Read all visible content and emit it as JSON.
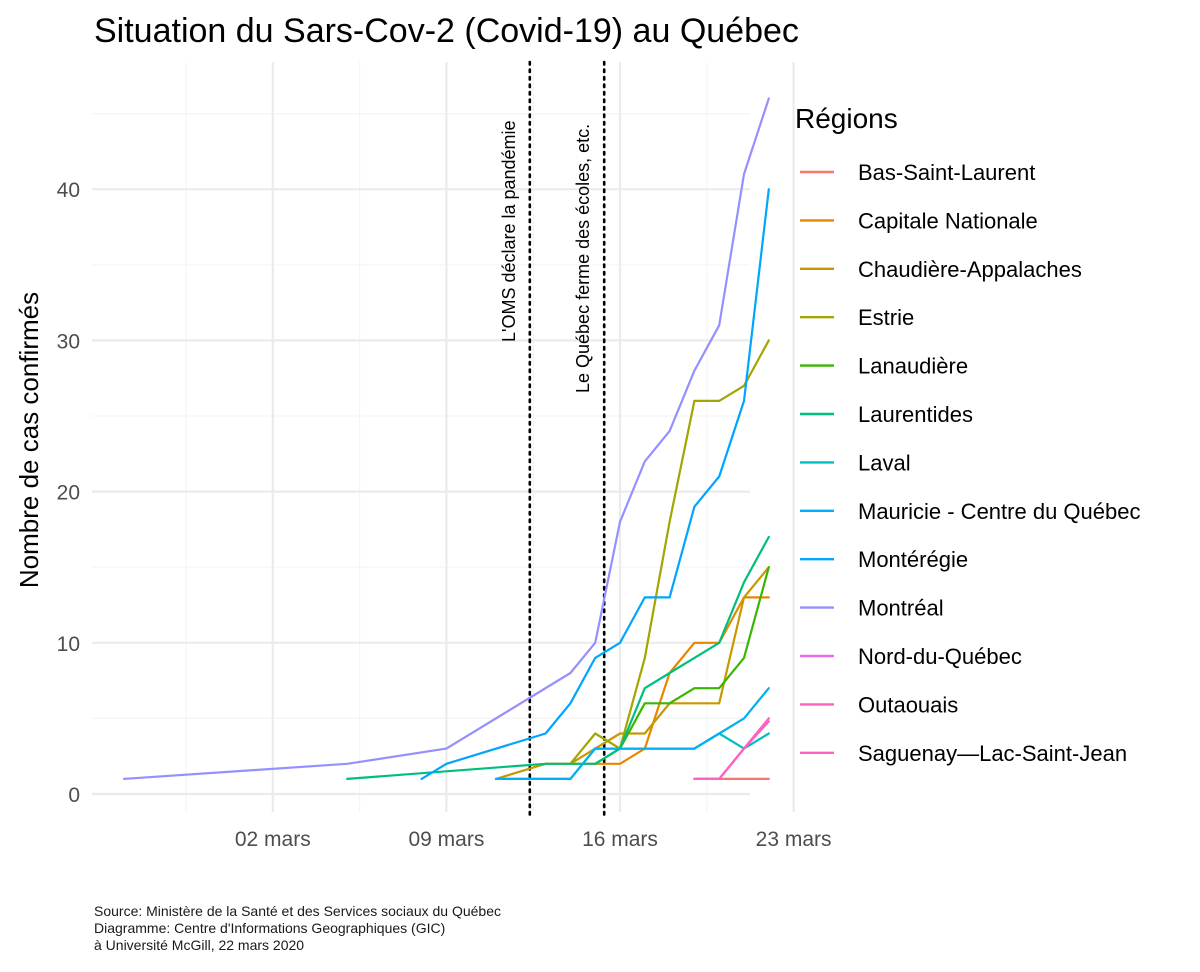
{
  "chart_data": {
    "type": "line",
    "title": "Situation du Sars-Cov-2 (Covid-19) au Québec",
    "ylabel": "Nombre de cas confirmés",
    "xlabel": "",
    "x_ticks": [
      "02 mars",
      "09 mars",
      "16 mars",
      "23 mars"
    ],
    "y_ticks": [
      0,
      10,
      20,
      30,
      40
    ],
    "xlim": [
      "2020-02-25",
      "2020-03-23"
    ],
    "ylim": [
      0,
      48
    ],
    "grid": true,
    "legend_title": "Régions",
    "legend_position": "right",
    "annotations": [
      {
        "date": "2020-03-12",
        "text": "L'OMS déclare la pandémie"
      },
      {
        "date": "2020-03-15",
        "text": "Le Québec ferme des écoles, etc."
      }
    ],
    "series": [
      {
        "name": "Bas-Saint-Laurent",
        "color": "#F8766D",
        "points": [
          [
            "2020-03-19",
            1
          ],
          [
            "2020-03-20",
            1
          ],
          [
            "2020-03-21",
            1
          ],
          [
            "2020-03-22",
            1
          ]
        ]
      },
      {
        "name": "Capitale Nationale",
        "color": "#E58700",
        "points": [
          [
            "2020-03-13",
            2
          ],
          [
            "2020-03-14",
            2
          ],
          [
            "2020-03-15",
            2
          ],
          [
            "2020-03-16",
            2
          ],
          [
            "2020-03-17",
            3
          ],
          [
            "2020-03-18",
            8
          ],
          [
            "2020-03-19",
            10
          ],
          [
            "2020-03-20",
            10
          ],
          [
            "2020-03-21",
            13
          ],
          [
            "2020-03-22",
            13
          ]
        ]
      },
      {
        "name": "Chaudière-Appalaches",
        "color": "#C99800",
        "points": [
          [
            "2020-03-11",
            1
          ],
          [
            "2020-03-12",
            1.5
          ],
          [
            "2020-03-13",
            2
          ],
          [
            "2020-03-14",
            2
          ],
          [
            "2020-03-15",
            3
          ],
          [
            "2020-03-16",
            4
          ],
          [
            "2020-03-17",
            4
          ],
          [
            "2020-03-18",
            6
          ],
          [
            "2020-03-19",
            6
          ],
          [
            "2020-03-20",
            6
          ],
          [
            "2020-03-21",
            13
          ],
          [
            "2020-03-22",
            15
          ]
        ]
      },
      {
        "name": "Estrie",
        "color": "#A3A500",
        "points": [
          [
            "2020-03-14",
            2
          ],
          [
            "2020-03-15",
            4
          ],
          [
            "2020-03-16",
            3
          ],
          [
            "2020-03-17",
            9
          ],
          [
            "2020-03-18",
            18
          ],
          [
            "2020-03-19",
            26
          ],
          [
            "2020-03-20",
            26
          ],
          [
            "2020-03-21",
            27
          ],
          [
            "2020-03-22",
            30
          ]
        ]
      },
      {
        "name": "Lanaudière",
        "color": "#39B600",
        "points": [
          [
            "2020-03-15",
            2
          ],
          [
            "2020-03-16",
            3
          ],
          [
            "2020-03-17",
            6
          ],
          [
            "2020-03-18",
            6
          ],
          [
            "2020-03-19",
            7
          ],
          [
            "2020-03-20",
            7
          ],
          [
            "2020-03-21",
            9
          ],
          [
            "2020-03-22",
            15
          ]
        ]
      },
      {
        "name": "Laurentides",
        "color": "#00BF7D",
        "points": [
          [
            "2020-03-05",
            1
          ],
          [
            "2020-03-09",
            1.5
          ],
          [
            "2020-03-13",
            2
          ],
          [
            "2020-03-14",
            2
          ],
          [
            "2020-03-15",
            2
          ],
          [
            "2020-03-16",
            3
          ],
          [
            "2020-03-17",
            7
          ],
          [
            "2020-03-18",
            8
          ],
          [
            "2020-03-19",
            9
          ],
          [
            "2020-03-20",
            10
          ],
          [
            "2020-03-21",
            14
          ],
          [
            "2020-03-22",
            17
          ]
        ]
      },
      {
        "name": "Laval",
        "color": "#00BFC4",
        "points": [
          [
            "2020-03-11",
            1
          ],
          [
            "2020-03-12",
            1
          ],
          [
            "2020-03-13",
            1
          ],
          [
            "2020-03-14",
            1
          ],
          [
            "2020-03-15",
            3
          ],
          [
            "2020-03-16",
            3
          ],
          [
            "2020-03-17",
            3
          ],
          [
            "2020-03-18",
            3
          ],
          [
            "2020-03-19",
            3
          ],
          [
            "2020-03-20",
            4
          ],
          [
            "2020-03-21",
            3
          ],
          [
            "2020-03-22",
            4
          ]
        ]
      },
      {
        "name": "Mauricie - Centre du Québec",
        "color": "#00B0F6",
        "points": [
          [
            "2020-03-11",
            1
          ],
          [
            "2020-03-12",
            1
          ],
          [
            "2020-03-13",
            1
          ],
          [
            "2020-03-14",
            1
          ],
          [
            "2020-03-15",
            3
          ],
          [
            "2020-03-16",
            3
          ],
          [
            "2020-03-17",
            3
          ],
          [
            "2020-03-18",
            3
          ],
          [
            "2020-03-19",
            3
          ],
          [
            "2020-03-20",
            4
          ],
          [
            "2020-03-21",
            5
          ],
          [
            "2020-03-22",
            7
          ]
        ]
      },
      {
        "name": "Montérégie",
        "color": "#00A5FF",
        "points": [
          [
            "2020-03-08",
            1
          ],
          [
            "2020-03-09",
            2
          ],
          [
            "2020-03-13",
            4
          ],
          [
            "2020-03-14",
            6
          ],
          [
            "2020-03-15",
            9
          ],
          [
            "2020-03-16",
            10
          ],
          [
            "2020-03-17",
            13
          ],
          [
            "2020-03-18",
            13
          ],
          [
            "2020-03-19",
            19
          ],
          [
            "2020-03-20",
            21
          ],
          [
            "2020-03-21",
            26
          ],
          [
            "2020-03-22",
            40
          ]
        ]
      },
      {
        "name": "Montréal",
        "color": "#9590FF",
        "points": [
          [
            "2020-02-25",
            1
          ],
          [
            "2020-03-05",
            2
          ],
          [
            "2020-03-09",
            3
          ],
          [
            "2020-03-14",
            8
          ],
          [
            "2020-03-15",
            10
          ],
          [
            "2020-03-16",
            18
          ],
          [
            "2020-03-17",
            22
          ],
          [
            "2020-03-18",
            24
          ],
          [
            "2020-03-19",
            28
          ],
          [
            "2020-03-20",
            31
          ],
          [
            "2020-03-21",
            41
          ],
          [
            "2020-03-22",
            46
          ]
        ]
      },
      {
        "name": "Nord-du-Québec",
        "color": "#E76BF3",
        "points": [
          [
            "2020-03-19",
            1
          ],
          [
            "2020-03-20",
            1
          ],
          [
            "2020-03-21",
            3
          ],
          [
            "2020-03-22",
            5
          ]
        ]
      },
      {
        "name": "Outaouais",
        "color": "#FF62BC",
        "points": [
          [
            "2020-03-19",
            1
          ],
          [
            "2020-03-20",
            1
          ],
          [
            "2020-03-21",
            3
          ],
          [
            "2020-03-22",
            5
          ]
        ]
      },
      {
        "name": "Saguenay—Lac-Saint-Jean",
        "color": "#FF61C3",
        "points": [
          [
            "2020-03-19",
            1
          ],
          [
            "2020-03-20",
            1
          ],
          [
            "2020-03-21",
            3
          ],
          [
            "2020-03-22",
            4.8
          ]
        ]
      }
    ]
  },
  "caption": {
    "line1": "Source: Ministère de la Santé et des Services sociaux du Québec",
    "line2": "Diagramme: Centre d'Informations Geographiques (GIC)",
    "line3": "à Université McGill, 22 mars 2020"
  },
  "colors": {
    "grid_major": "#ebebeb",
    "grid_minor": "#f5f5f5",
    "axis_text": "#4d4d4d",
    "annotation_line": "#000000"
  }
}
